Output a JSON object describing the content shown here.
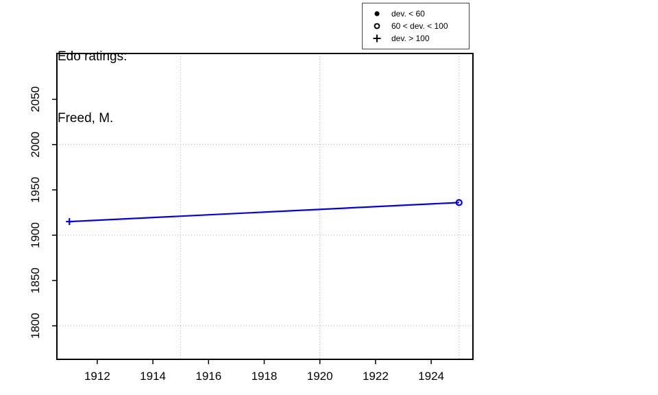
{
  "title": {
    "line1": "Edo ratings:",
    "line2": "Freed, M."
  },
  "legend": {
    "items": [
      {
        "symbol": "filled-circle-icon",
        "label": "dev. < 60"
      },
      {
        "symbol": "open-circle-icon",
        "label": "60 < dev. < 100"
      },
      {
        "symbol": "plus-icon",
        "label": "dev. > 100"
      }
    ]
  },
  "colors": {
    "line": "#0000ee",
    "grid": "#a8a8a8",
    "axis": "#000000",
    "legend_symbol": "#000000"
  },
  "chart_data": {
    "type": "line",
    "title": "Edo ratings: Freed, M.",
    "xlabel": "",
    "ylabel": "",
    "xlim": [
      1910.55,
      1925.5
    ],
    "ylim": [
      1763,
      2100.5
    ],
    "x_ticks": [
      1912,
      1914,
      1916,
      1918,
      1920,
      1922,
      1924
    ],
    "y_ticks": [
      1800,
      1850,
      1900,
      1950,
      2000,
      2050
    ],
    "grid": {
      "style": "dotted",
      "x_values": [
        1915,
        1920,
        1925
      ],
      "y_values": [
        1800,
        1900,
        2000
      ]
    },
    "legend_position": "top-right",
    "series": [
      {
        "name": "Edo rating",
        "color": "#0000ee",
        "points": [
          {
            "x": 1911,
            "y": 1915,
            "marker": "plus",
            "deviation_class": "dev. > 100"
          },
          {
            "x": 1925,
            "y": 1936,
            "marker": "open-circle",
            "deviation_class": "60 < dev. < 100"
          }
        ]
      }
    ]
  }
}
